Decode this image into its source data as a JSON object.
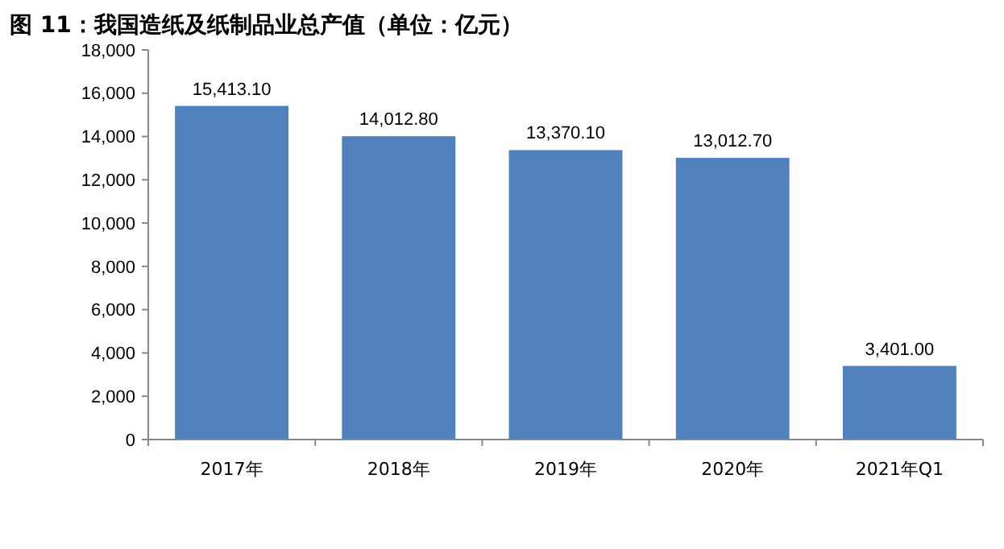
{
  "chart_data": {
    "type": "bar",
    "title": "图 11：我国造纸及纸制品业总产值（单位：亿元）",
    "categories": [
      "2017年",
      "2018年",
      "2019年",
      "2020年",
      "2021年Q1"
    ],
    "values": [
      15413.1,
      14012.8,
      13370.1,
      13012.7,
      3401.0
    ],
    "value_labels": [
      "15,413.10",
      "14,012.80",
      "13,370.10",
      "13,012.70",
      "3,401.00"
    ],
    "color": "#4f81bd",
    "ylim": [
      0,
      18000
    ],
    "yticks": [
      {
        "value": 0,
        "label": "0"
      },
      {
        "value": 2000,
        "label": "2,000"
      },
      {
        "value": 4000,
        "label": "4,000"
      },
      {
        "value": 6000,
        "label": "6,000"
      },
      {
        "value": 8000,
        "label": "8,000"
      },
      {
        "value": 10000,
        "label": "10,000"
      },
      {
        "value": 12000,
        "label": "12,000"
      },
      {
        "value": 14000,
        "label": "14,000"
      },
      {
        "value": 16000,
        "label": "16,000"
      },
      {
        "value": 18000,
        "label": "18,000"
      }
    ]
  }
}
